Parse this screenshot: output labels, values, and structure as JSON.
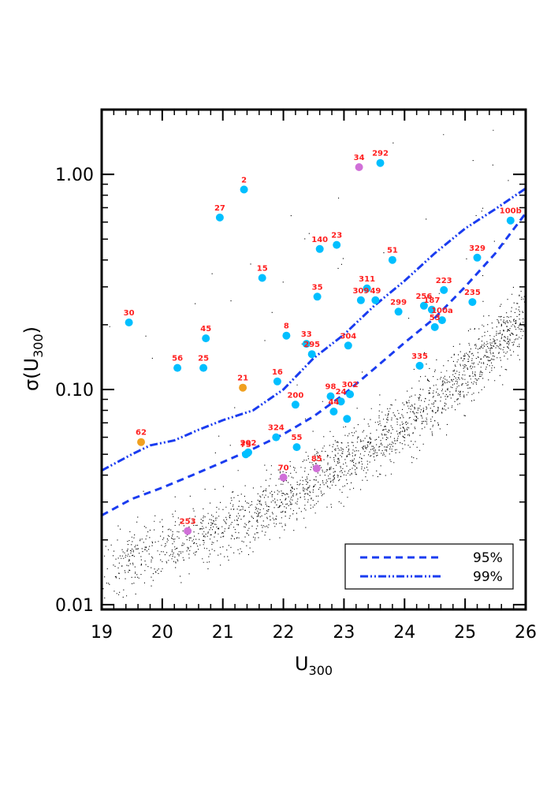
{
  "chart_data": {
    "type": "scatter",
    "title": "",
    "xlabel": "U300",
    "xlabel_main": "U",
    "xlabel_sub": "300",
    "ylabel": "σ(U300)",
    "ylabel_parts": {
      "pre": "σ(U",
      "sub": "300",
      "post": ")"
    },
    "xlim": [
      19,
      26
    ],
    "ylim": [
      0.0095,
      2.0
    ],
    "yscale": "log",
    "x_ticks": [
      "19",
      "20",
      "21",
      "22",
      "23",
      "24",
      "25",
      "26"
    ],
    "y_ticks": [
      {
        "value": 0.01,
        "label": "0.01"
      },
      {
        "value": 0.1,
        "label": "0.10"
      },
      {
        "value": 1.0,
        "label": "1.00"
      }
    ],
    "colors": {
      "background_points": "#000000",
      "cyan": "#00bfff",
      "orange": "#f0a020",
      "violet": "#d070d8",
      "labels": "#ff2020",
      "lines": "#1a3cf0"
    },
    "background_cloud": {
      "description_free": true,
      "count": 5500
    },
    "thresholds": [
      {
        "name": "95%",
        "style": "dashed",
        "x": [
          19.0,
          19.5,
          20.0,
          20.5,
          21.0,
          21.5,
          22.0,
          22.5,
          23.0,
          23.5,
          24.0,
          24.5,
          25.0,
          25.5,
          26.0
        ],
        "y": [
          0.026,
          0.031,
          0.035,
          0.04,
          0.046,
          0.053,
          0.062,
          0.075,
          0.095,
          0.125,
          0.165,
          0.215,
          0.3,
          0.43,
          0.66
        ]
      },
      {
        "name": "99%",
        "style": "dash-dot-dot",
        "x": [
          19.0,
          19.5,
          19.8,
          20.2,
          20.6,
          21.0,
          21.5,
          22.0,
          22.5,
          23.0,
          23.5,
          24.0,
          24.5,
          25.0,
          25.5,
          26.0
        ],
        "y": [
          0.042,
          0.05,
          0.055,
          0.058,
          0.065,
          0.072,
          0.08,
          0.1,
          0.14,
          0.18,
          0.245,
          0.32,
          0.43,
          0.56,
          0.69,
          0.86
        ]
      }
    ],
    "legend": {
      "position": "bottom-right",
      "entries": [
        "95%",
        "99%"
      ]
    },
    "points": [
      {
        "label": "34",
        "x": 23.25,
        "y": 1.08,
        "color": "violet"
      },
      {
        "label": "292",
        "x": 23.6,
        "y": 1.13,
        "color": "cyan"
      },
      {
        "label": "2",
        "x": 21.35,
        "y": 0.85,
        "color": "cyan"
      },
      {
        "label": "27",
        "x": 20.95,
        "y": 0.63,
        "color": "cyan"
      },
      {
        "label": "100b",
        "x": 25.75,
        "y": 0.61,
        "color": "cyan"
      },
      {
        "label": "140",
        "x": 22.6,
        "y": 0.45,
        "color": "cyan"
      },
      {
        "label": "23",
        "x": 22.88,
        "y": 0.47,
        "color": "cyan"
      },
      {
        "label": "51",
        "x": 23.8,
        "y": 0.4,
        "color": "cyan"
      },
      {
        "label": "329",
        "x": 25.2,
        "y": 0.41,
        "color": "cyan"
      },
      {
        "label": "15",
        "x": 21.65,
        "y": 0.33,
        "color": "cyan"
      },
      {
        "label": "311",
        "x": 23.38,
        "y": 0.295,
        "color": "cyan"
      },
      {
        "label": "223",
        "x": 24.65,
        "y": 0.29,
        "color": "cyan"
      },
      {
        "label": "35",
        "x": 22.56,
        "y": 0.27,
        "color": "cyan"
      },
      {
        "label": "309",
        "x": 23.28,
        "y": 0.26,
        "color": "cyan"
      },
      {
        "label": "49",
        "x": 23.52,
        "y": 0.26,
        "color": "cyan"
      },
      {
        "label": "256",
        "x": 24.32,
        "y": 0.245,
        "color": "cyan"
      },
      {
        "label": "235",
        "x": 25.12,
        "y": 0.255,
        "color": "cyan"
      },
      {
        "label": "299",
        "x": 23.9,
        "y": 0.23,
        "color": "cyan"
      },
      {
        "label": "187",
        "x": 24.45,
        "y": 0.235,
        "color": "cyan"
      },
      {
        "label": "100a",
        "x": 24.62,
        "y": 0.21,
        "color": "cyan"
      },
      {
        "label": "30",
        "x": 19.45,
        "y": 0.205,
        "color": "cyan"
      },
      {
        "label": "53",
        "x": 24.5,
        "y": 0.195,
        "color": "cyan"
      },
      {
        "label": "8",
        "x": 22.05,
        "y": 0.178,
        "color": "cyan"
      },
      {
        "label": "45",
        "x": 20.72,
        "y": 0.173,
        "color": "cyan"
      },
      {
        "label": "33",
        "x": 22.38,
        "y": 0.163,
        "color": "cyan"
      },
      {
        "label": "304",
        "x": 23.07,
        "y": 0.16,
        "color": "cyan"
      },
      {
        "label": "295",
        "x": 22.47,
        "y": 0.146,
        "color": "cyan"
      },
      {
        "label": "56",
        "x": 20.25,
        "y": 0.126,
        "color": "cyan"
      },
      {
        "label": "25",
        "x": 20.68,
        "y": 0.126,
        "color": "cyan"
      },
      {
        "label": "335",
        "x": 24.25,
        "y": 0.129,
        "color": "cyan"
      },
      {
        "label": "16",
        "x": 21.9,
        "y": 0.109,
        "color": "cyan"
      },
      {
        "label": "21",
        "x": 21.33,
        "y": 0.102,
        "color": "orange"
      },
      {
        "label": "98",
        "x": 22.78,
        "y": 0.093,
        "color": "cyan"
      },
      {
        "label": "302",
        "x": 23.1,
        "y": 0.095,
        "color": "cyan"
      },
      {
        "label": "24",
        "x": 22.95,
        "y": 0.088,
        "color": "cyan"
      },
      {
        "label": "200",
        "x": 22.2,
        "y": 0.085,
        "color": "cyan"
      },
      {
        "label": "44",
        "x": 22.83,
        "y": 0.079,
        "color": "cyan"
      },
      {
        "label": "",
        "x": 23.05,
        "y": 0.073,
        "color": "cyan"
      },
      {
        "label": "324",
        "x": 21.88,
        "y": 0.06,
        "color": "cyan"
      },
      {
        "label": "62",
        "x": 19.65,
        "y": 0.057,
        "color": "orange"
      },
      {
        "label": "202",
        "x": 21.42,
        "y": 0.051,
        "color": "cyan"
      },
      {
        "label": "75",
        "x": 21.38,
        "y": 0.05,
        "color": "cyan"
      },
      {
        "label": "55",
        "x": 22.22,
        "y": 0.054,
        "color": "cyan"
      },
      {
        "label": "70",
        "x": 22.0,
        "y": 0.039,
        "color": "violet"
      },
      {
        "label": "85",
        "x": 22.55,
        "y": 0.043,
        "color": "violet"
      },
      {
        "label": "253",
        "x": 20.42,
        "y": 0.022,
        "color": "violet"
      }
    ]
  }
}
